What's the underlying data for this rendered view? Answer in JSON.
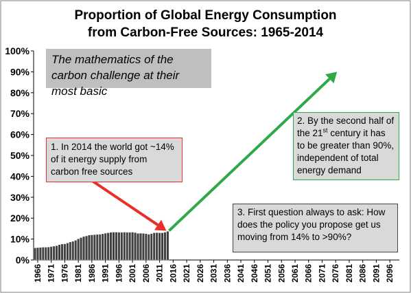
{
  "title_line1": "Proportion of Global Energy Consumption",
  "title_line2": "from Carbon-Free Sources:  1965-2014",
  "header_box": "The mathematics of the carbon challenge at their most basic",
  "annotation_1": "1. In 2014 the world got ~14% of it energy supply from carbon free sources",
  "annotation_2": {
    "part1": "2. By the second half of the 21",
    "sup": "st",
    "part2": " century it has to be greater than 90%, independent of total energy demand"
  },
  "annotation_3": "3. First question always to ask: How does the policy you propose get us moving from 14% to >90%?",
  "colors": {
    "bars": "#404040",
    "red_arrow": "#e8302a",
    "green_arrow": "#2fa84a",
    "frame": "#7f7f7f"
  },
  "chart_data": {
    "type": "bar",
    "x_start_year": 1965,
    "x_end_year": 2100,
    "x_tick_labels": [
      "1966",
      "1971",
      "1976",
      "1981",
      "1986",
      "1991",
      "1996",
      "2001",
      "2006",
      "2011",
      "2016",
      "2021",
      "2026",
      "2031",
      "2036",
      "2041",
      "2046",
      "2051",
      "2056",
      "2061",
      "2066",
      "2071",
      "2076",
      "2081",
      "2086",
      "2091",
      "2096"
    ],
    "x_tick_years": [
      1966,
      1971,
      1976,
      1981,
      1986,
      1991,
      1996,
      2001,
      2006,
      2011,
      2016,
      2021,
      2026,
      2031,
      2036,
      2041,
      2046,
      2051,
      2056,
      2061,
      2066,
      2071,
      2076,
      2081,
      2086,
      2091,
      2096
    ],
    "y_ticks": [
      "0%",
      "10%",
      "20%",
      "30%",
      "40%",
      "50%",
      "60%",
      "70%",
      "80%",
      "90%",
      "100%"
    ],
    "ylim": [
      0,
      100
    ],
    "grid": false,
    "categories": [
      1965,
      1966,
      1967,
      1968,
      1969,
      1970,
      1971,
      1972,
      1973,
      1974,
      1975,
      1976,
      1977,
      1978,
      1979,
      1980,
      1981,
      1982,
      1983,
      1984,
      1985,
      1986,
      1987,
      1988,
      1989,
      1990,
      1991,
      1992,
      1993,
      1994,
      1995,
      1996,
      1997,
      1998,
      1999,
      2000,
      2001,
      2002,
      2003,
      2004,
      2005,
      2006,
      2007,
      2008,
      2009,
      2010,
      2011,
      2012,
      2013,
      2014
    ],
    "values": [
      5.8,
      5.9,
      6.0,
      6.1,
      6.1,
      6.2,
      6.4,
      6.6,
      6.8,
      7.3,
      7.6,
      7.7,
      8.1,
      8.6,
      8.9,
      9.4,
      10.1,
      10.7,
      11.2,
      11.5,
      11.9,
      12.0,
      12.1,
      12.2,
      12.3,
      12.5,
      12.8,
      13.0,
      13.2,
      13.3,
      13.3,
      13.2,
      13.2,
      13.3,
      13.2,
      13.2,
      13.3,
      13.1,
      12.7,
      12.8,
      12.7,
      12.6,
      12.3,
      12.6,
      13.0,
      13.1,
      13.0,
      13.0,
      13.3,
      13.7
    ],
    "arrows": [
      {
        "color": "red",
        "from": [
          1983,
          41
        ],
        "to": [
          2014,
          14
        ]
      },
      {
        "color": "green",
        "from": [
          2015,
          14
        ],
        "to": [
          2077,
          90
        ]
      }
    ]
  }
}
